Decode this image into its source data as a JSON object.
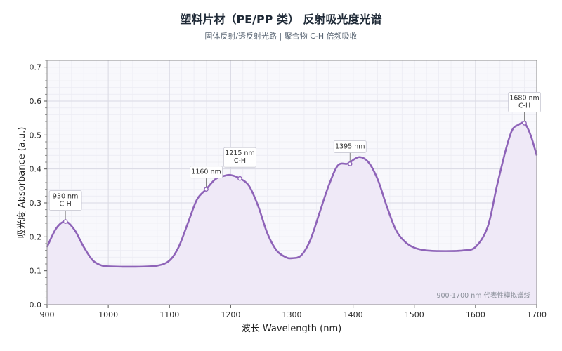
{
  "chart_data": {
    "type": "area",
    "title": "塑料片材（PE/PP 类） 反射吸光度光谱",
    "subtitle": "固体反射/透反射光路 | 聚合物 C-H 倍频吸收",
    "xlabel": "波长 Wavelength (nm)",
    "ylabel": "吸光度 Absorbance (a.u.)",
    "xlim": [
      900,
      1700
    ],
    "ylim": [
      0,
      0.72
    ],
    "x_ticks": [
      900,
      1000,
      1100,
      1200,
      1300,
      1400,
      1500,
      1600,
      1700
    ],
    "y_ticks": [
      0.0,
      0.1,
      0.2,
      0.3,
      0.4,
      0.5,
      0.6,
      0.7
    ],
    "grid": true,
    "series": [
      {
        "color": "#8e63b8",
        "fill": "#efe9f7",
        "x": [
          900,
          915,
          930,
          945,
          960,
          975,
          990,
          1000,
          1020,
          1050,
          1080,
          1100,
          1115,
          1130,
          1145,
          1160,
          1175,
          1190,
          1200,
          1215,
          1230,
          1245,
          1260,
          1275,
          1290,
          1300,
          1315,
          1330,
          1345,
          1360,
          1375,
          1390,
          1395,
          1410,
          1425,
          1440,
          1455,
          1470,
          1485,
          1500,
          1520,
          1550,
          1580,
          1600,
          1620,
          1635,
          1650,
          1660,
          1670,
          1680,
          1690,
          1700
        ],
        "y": [
          0.17,
          0.225,
          0.245,
          0.22,
          0.17,
          0.13,
          0.115,
          0.113,
          0.112,
          0.112,
          0.115,
          0.13,
          0.17,
          0.24,
          0.31,
          0.34,
          0.37,
          0.38,
          0.382,
          0.372,
          0.35,
          0.29,
          0.21,
          0.16,
          0.14,
          0.137,
          0.145,
          0.19,
          0.27,
          0.35,
          0.41,
          0.415,
          0.42,
          0.435,
          0.42,
          0.37,
          0.29,
          0.22,
          0.185,
          0.168,
          0.16,
          0.158,
          0.16,
          0.17,
          0.23,
          0.35,
          0.46,
          0.515,
          0.53,
          0.535,
          0.5,
          0.44
        ]
      }
    ],
    "annotations": [
      {
        "x": 930,
        "y": 0.245,
        "lines": [
          "930 nm",
          "C-H"
        ]
      },
      {
        "x": 1160,
        "y": 0.34,
        "lines": [
          "1160 nm"
        ]
      },
      {
        "x": 1215,
        "y": 0.372,
        "lines": [
          "1215 nm",
          "C-H"
        ]
      },
      {
        "x": 1395,
        "y": 0.415,
        "lines": [
          "1395 nm"
        ]
      },
      {
        "x": 1680,
        "y": 0.535,
        "lines": [
          "1680 nm",
          "C-H"
        ]
      }
    ],
    "note": "900-1700 nm 代表性模拟谱线"
  }
}
